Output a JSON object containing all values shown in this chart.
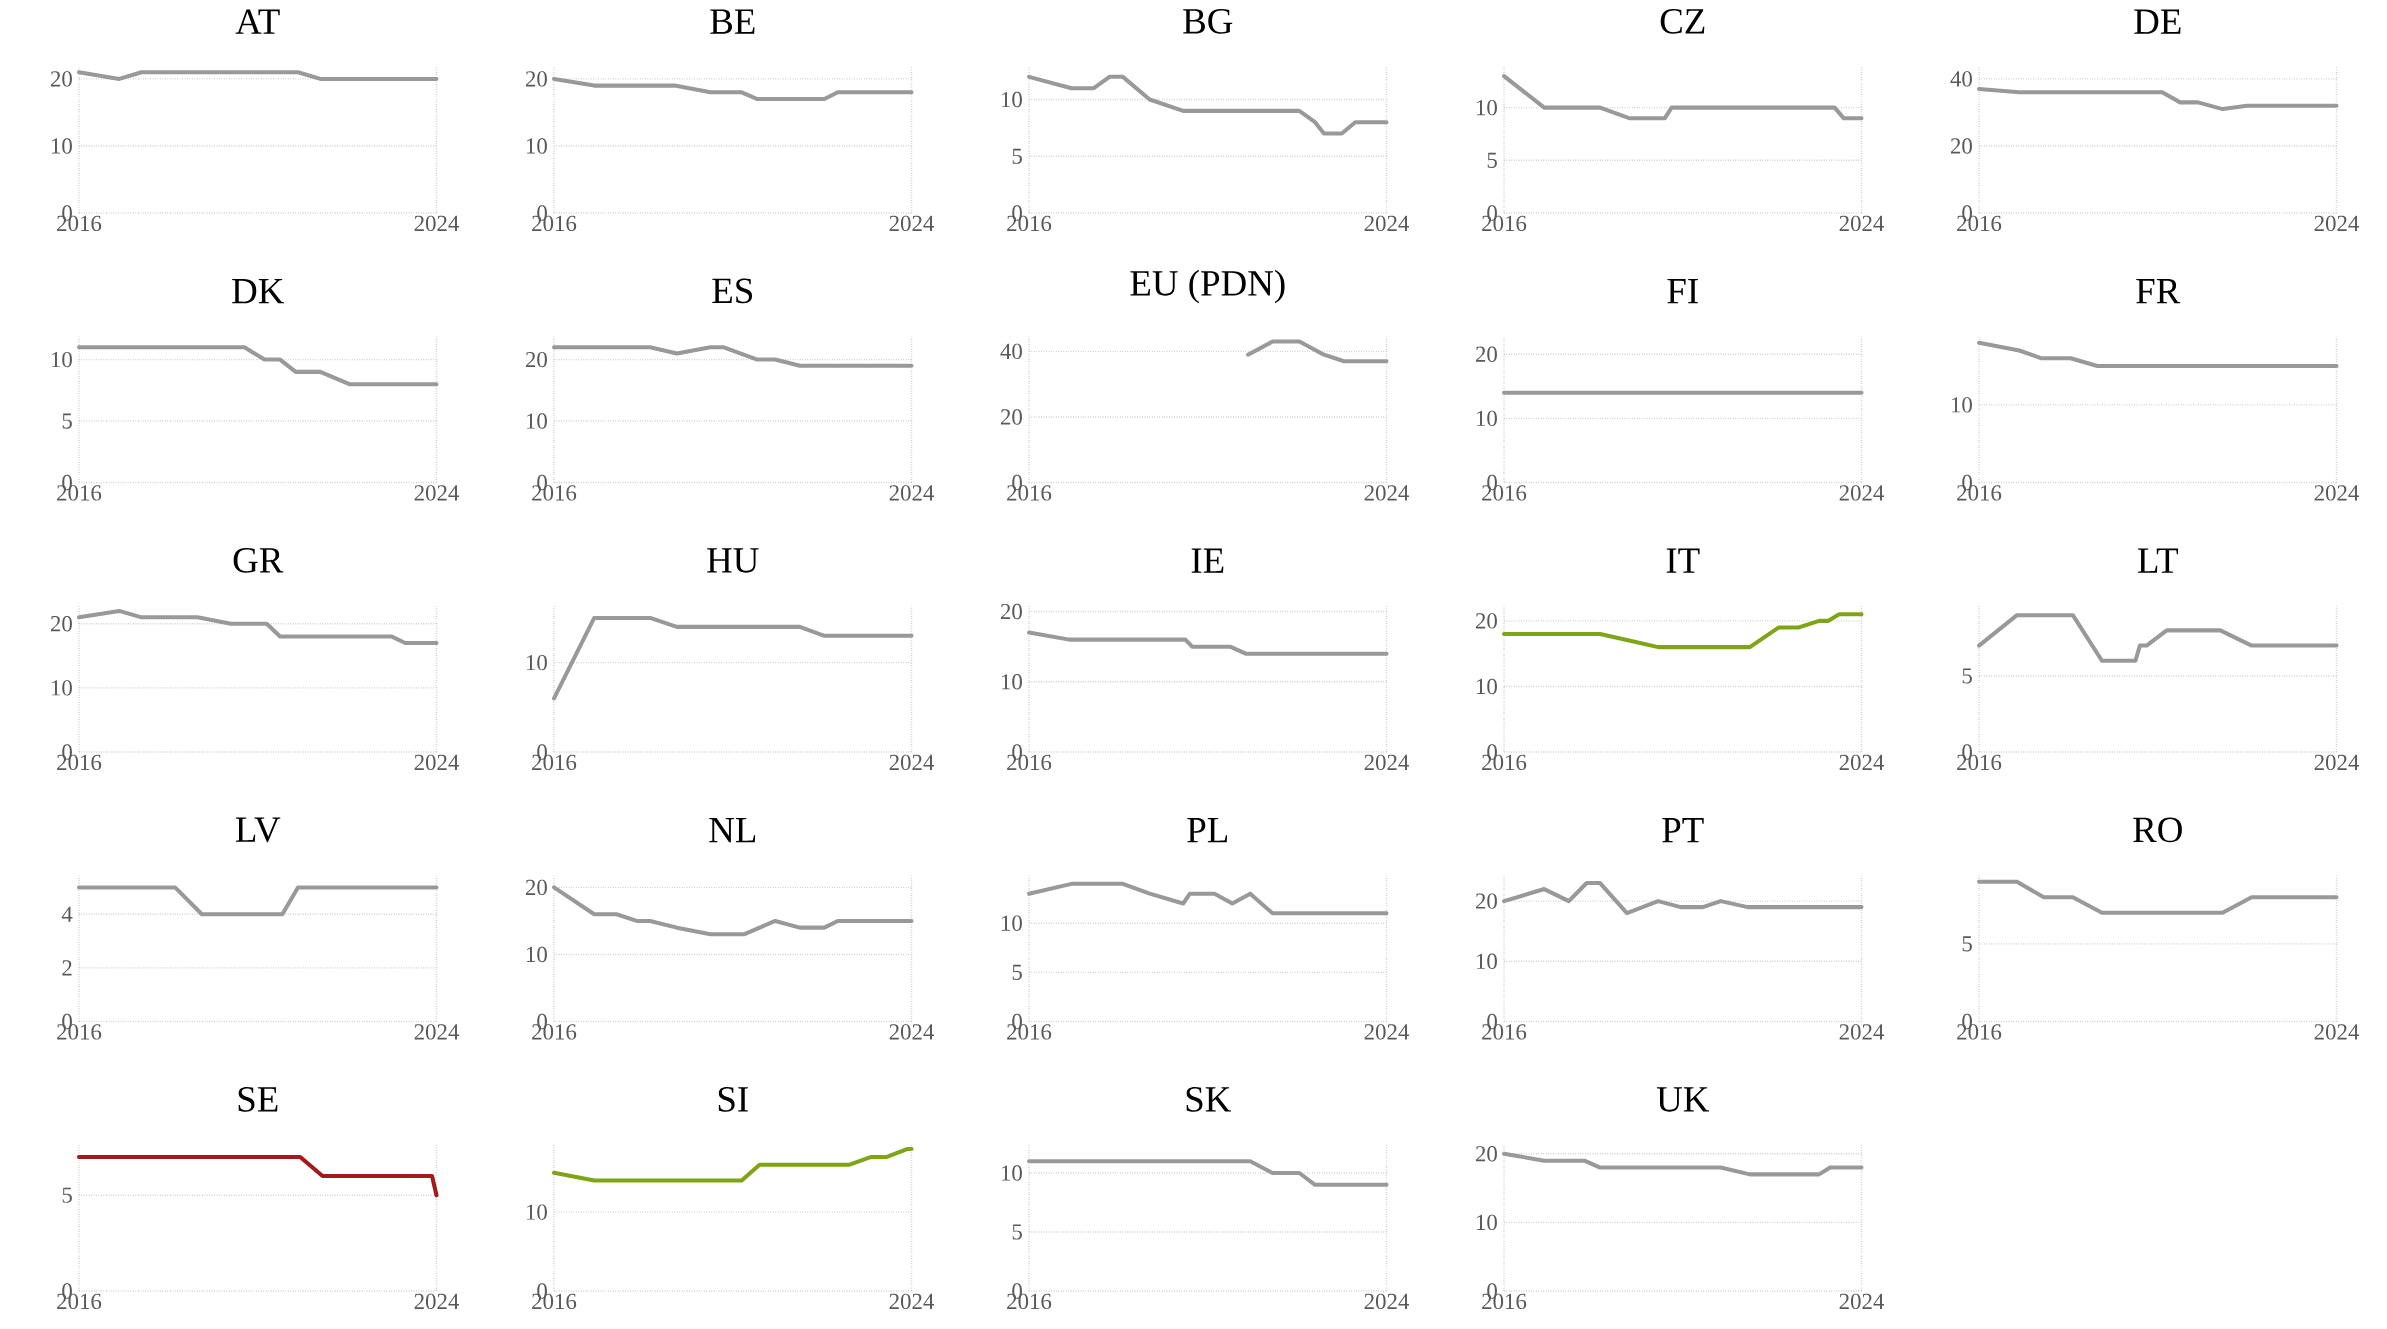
{
  "chart_data": [
    {
      "type": "line",
      "title": "AT",
      "color": "#999999",
      "x": [
        2016,
        2016.9,
        2017.4,
        2020.9,
        2021.4,
        2024
      ],
      "values": [
        21,
        20,
        21,
        21,
        20,
        20
      ],
      "xlim": [
        2016,
        2024
      ],
      "xticks": [
        2016,
        2024
      ],
      "ylim": [
        0,
        22
      ],
      "yticks": [
        0,
        10,
        20
      ],
      "grid": true
    },
    {
      "type": "line",
      "title": "BE",
      "color": "#999999",
      "x": [
        2016,
        2016.9,
        2018.7,
        2019.5,
        2020.2,
        2020.55,
        2022.05,
        2022.35,
        2024
      ],
      "values": [
        20,
        19,
        19,
        18,
        18,
        17,
        17,
        18,
        18
      ],
      "xlim": [
        2016,
        2024
      ],
      "xticks": [
        2016,
        2024
      ],
      "ylim": [
        0,
        22
      ],
      "yticks": [
        0,
        10,
        20
      ],
      "grid": true
    },
    {
      "type": "line",
      "title": "BG",
      "color": "#999999",
      "x": [
        2016,
        2016.95,
        2017.45,
        2017.8,
        2018.1,
        2018.7,
        2019.45,
        2022.05,
        2022.4,
        2022.6,
        2023.0,
        2023.3,
        2024
      ],
      "values": [
        12,
        11,
        11,
        12,
        12,
        10,
        9,
        9,
        8,
        7,
        7,
        8,
        8
      ],
      "xlim": [
        2016,
        2024
      ],
      "xticks": [
        2016,
        2024
      ],
      "ylim": [
        0,
        13
      ],
      "yticks": [
        0,
        5,
        10
      ],
      "grid": true
    },
    {
      "type": "line",
      "title": "CZ",
      "color": "#999999",
      "x": [
        2016,
        2016.9,
        2018.15,
        2018.8,
        2019.6,
        2019.75,
        2023.4,
        2023.6,
        2024
      ],
      "values": [
        13,
        10,
        10,
        9,
        9,
        10,
        10,
        9,
        9
      ],
      "xlim": [
        2016,
        2024
      ],
      "xticks": [
        2016,
        2024
      ],
      "ylim": [
        0,
        14
      ],
      "yticks": [
        0,
        5,
        10
      ],
      "grid": true
    },
    {
      "type": "line",
      "title": "DE",
      "color": "#999999",
      "x": [
        2016,
        2016.9,
        2020.1,
        2020.5,
        2020.9,
        2021.45,
        2022.0,
        2024
      ],
      "values": [
        37,
        36,
        36,
        33,
        33,
        31,
        32,
        32
      ],
      "xlim": [
        2016,
        2024
      ],
      "xticks": [
        2016,
        2024
      ],
      "ylim": [
        0,
        44
      ],
      "yticks": [
        0,
        20,
        40
      ],
      "grid": true
    },
    {
      "type": "line",
      "title": "DK",
      "color": "#999999",
      "x": [
        2016,
        2019.7,
        2020.15,
        2020.5,
        2020.85,
        2021.4,
        2022.05,
        2024
      ],
      "values": [
        11,
        11,
        10,
        10,
        9,
        9,
        8,
        8
      ],
      "xlim": [
        2016,
        2024
      ],
      "xticks": [
        2016,
        2024
      ],
      "ylim": [
        0,
        12
      ],
      "yticks": [
        0,
        5,
        10
      ],
      "grid": true
    },
    {
      "type": "line",
      "title": "ES",
      "color": "#999999",
      "x": [
        2016,
        2018.15,
        2018.75,
        2019.5,
        2019.8,
        2020.55,
        2020.95,
        2021.5,
        2024
      ],
      "values": [
        22,
        22,
        21,
        22,
        22,
        20,
        20,
        19,
        19
      ],
      "xlim": [
        2016,
        2024
      ],
      "xticks": [
        2016,
        2024
      ],
      "ylim": [
        0,
        24
      ],
      "yticks": [
        0,
        10,
        20
      ],
      "grid": true
    },
    {
      "type": "line",
      "title": "EU (PDN)",
      "color": "#999999",
      "x": [
        2020.9,
        2021.45,
        2022.05,
        2022.6,
        2023.05,
        2024
      ],
      "values": [
        39,
        43,
        43,
        39,
        37,
        37
      ],
      "xlim": [
        2016,
        2024
      ],
      "xticks": [
        2016,
        2024
      ],
      "ylim": [
        0,
        45
      ],
      "yticks": [
        0,
        20,
        40
      ],
      "grid": true
    },
    {
      "type": "line",
      "title": "FI",
      "color": "#999999",
      "x": [
        2016,
        2024
      ],
      "values": [
        14,
        14
      ],
      "xlim": [
        2016,
        2024
      ],
      "xticks": [
        2016,
        2024
      ],
      "ylim": [
        0,
        23
      ],
      "yticks": [
        0,
        10,
        20
      ],
      "grid": true
    },
    {
      "type": "line",
      "title": "FR",
      "color": "#999999",
      "x": [
        2016,
        2016.9,
        2017.4,
        2018.05,
        2018.65,
        2024
      ],
      "values": [
        18,
        17,
        16,
        16,
        15,
        15
      ],
      "xlim": [
        2016,
        2024
      ],
      "xticks": [
        2016,
        2024
      ],
      "ylim": [
        0,
        19
      ],
      "yticks": [
        0,
        10
      ],
      "grid": true
    },
    {
      "type": "line",
      "title": "GR",
      "color": "#999999",
      "x": [
        2016,
        2016.9,
        2017.4,
        2018.65,
        2019.4,
        2020.2,
        2020.5,
        2023.0,
        2023.3,
        2024
      ],
      "values": [
        21,
        22,
        21,
        21,
        20,
        20,
        18,
        18,
        17,
        17
      ],
      "xlim": [
        2016,
        2024
      ],
      "xticks": [
        2016,
        2024
      ],
      "ylim": [
        0,
        23
      ],
      "yticks": [
        0,
        10,
        20
      ],
      "grid": true
    },
    {
      "type": "line",
      "title": "HU",
      "color": "#999999",
      "x": [
        2016,
        2016.9,
        2018.15,
        2018.75,
        2021.5,
        2022.05,
        2024
      ],
      "values": [
        6,
        15,
        15,
        14,
        14,
        13,
        13
      ],
      "xlim": [
        2016,
        2024
      ],
      "xticks": [
        2016,
        2024
      ],
      "ylim": [
        0,
        16.5
      ],
      "yticks": [
        0,
        10
      ],
      "grid": true
    },
    {
      "type": "line",
      "title": "IE",
      "color": "#999999",
      "x": [
        2016,
        2016.9,
        2019.5,
        2019.65,
        2020.5,
        2020.85,
        2024
      ],
      "values": [
        17,
        16,
        16,
        15,
        15,
        14,
        14
      ],
      "xlim": [
        2016,
        2024
      ],
      "xticks": [
        2016,
        2024
      ],
      "ylim": [
        0,
        21
      ],
      "yticks": [
        0,
        10,
        20
      ],
      "grid": true
    },
    {
      "type": "line",
      "title": "IT",
      "color": "#7fa516",
      "x": [
        2016,
        2018.15,
        2018.8,
        2019.45,
        2021.5,
        2022.15,
        2022.6,
        2023.05,
        2023.25,
        2023.5,
        2024
      ],
      "values": [
        18,
        18,
        17,
        16,
        16,
        19,
        19,
        20,
        20,
        21,
        21
      ],
      "xlim": [
        2016,
        2024
      ],
      "xticks": [
        2016,
        2024
      ],
      "ylim": [
        0,
        22.5
      ],
      "yticks": [
        0,
        10,
        20
      ],
      "grid": true
    },
    {
      "type": "line",
      "title": "LT",
      "color": "#999999",
      "x": [
        2016,
        2016.85,
        2018.1,
        2018.75,
        2019.5,
        2019.6,
        2019.75,
        2020.2,
        2021.4,
        2022.1,
        2024
      ],
      "values": [
        7,
        9,
        9,
        6,
        6,
        7,
        7,
        8,
        8,
        7,
        7
      ],
      "xlim": [
        2016,
        2024
      ],
      "xticks": [
        2016,
        2024
      ],
      "ylim": [
        0,
        9.7
      ],
      "yticks": [
        0,
        5
      ],
      "grid": true
    },
    {
      "type": "line",
      "title": "LV",
      "color": "#999999",
      "x": [
        2016,
        2018.15,
        2018.75,
        2020.55,
        2020.9,
        2024
      ],
      "values": [
        5,
        5,
        4,
        4,
        5,
        5
      ],
      "xlim": [
        2016,
        2024
      ],
      "xticks": [
        2016,
        2024
      ],
      "ylim": [
        0,
        5.5
      ],
      "yticks": [
        0,
        2,
        4
      ],
      "grid": true
    },
    {
      "type": "line",
      "title": "NL",
      "color": "#999999",
      "x": [
        2016,
        2016.9,
        2017.4,
        2017.85,
        2018.15,
        2018.75,
        2019.5,
        2020.25,
        2020.95,
        2021.5,
        2022.05,
        2022.35,
        2024
      ],
      "values": [
        20,
        16,
        16,
        15,
        15,
        14,
        13,
        13,
        15,
        14,
        14,
        15,
        15
      ],
      "xlim": [
        2016,
        2024
      ],
      "xticks": [
        2016,
        2024
      ],
      "ylim": [
        0,
        22
      ],
      "yticks": [
        0,
        10,
        20
      ],
      "grid": true
    },
    {
      "type": "line",
      "title": "PL",
      "color": "#999999",
      "x": [
        2016,
        2016.95,
        2018.1,
        2018.7,
        2019.45,
        2019.6,
        2020.15,
        2020.55,
        2020.95,
        2021.45,
        2024
      ],
      "values": [
        13,
        14,
        14,
        13,
        12,
        13,
        13,
        12,
        13,
        11,
        11
      ],
      "xlim": [
        2016,
        2024
      ],
      "xticks": [
        2016,
        2024
      ],
      "ylim": [
        0,
        15
      ],
      "yticks": [
        0,
        5,
        10
      ],
      "grid": true
    },
    {
      "type": "line",
      "title": "PT",
      "color": "#999999",
      "x": [
        2016,
        2016.9,
        2017.45,
        2017.85,
        2018.15,
        2018.75,
        2019.45,
        2019.95,
        2020.45,
        2020.85,
        2021.45,
        2024
      ],
      "values": [
        20,
        22,
        20,
        23,
        23,
        18,
        20,
        19,
        19,
        20,
        19,
        19
      ],
      "xlim": [
        2016,
        2024
      ],
      "xticks": [
        2016,
        2024
      ],
      "ylim": [
        0,
        24.5
      ],
      "yticks": [
        0,
        10,
        20
      ],
      "grid": true
    },
    {
      "type": "line",
      "title": "RO",
      "color": "#999999",
      "x": [
        2016,
        2016.85,
        2017.45,
        2018.1,
        2018.75,
        2021.45,
        2022.1,
        2024
      ],
      "values": [
        9,
        9,
        8,
        8,
        7,
        7,
        8,
        8
      ],
      "xlim": [
        2016,
        2024
      ],
      "xticks": [
        2016,
        2024
      ],
      "ylim": [
        0,
        9.5
      ],
      "yticks": [
        0,
        5
      ],
      "grid": true
    },
    {
      "type": "line",
      "title": "SE",
      "color": "#a31a1a",
      "x": [
        2016,
        2020.95,
        2021.45,
        2023.9,
        2024
      ],
      "values": [
        7,
        7,
        6,
        6,
        5
      ],
      "xlim": [
        2016,
        2024
      ],
      "xticks": [
        2016,
        2024
      ],
      "ylim": [
        0,
        7.7
      ],
      "yticks": [
        0,
        5
      ],
      "grid": true
    },
    {
      "type": "line",
      "title": "SI",
      "color": "#7fa516",
      "x": [
        2016,
        2016.9,
        2020.2,
        2020.6,
        2022.6,
        2023.1,
        2023.45,
        2023.9,
        2024
      ],
      "values": [
        15,
        14,
        14,
        16,
        16,
        17,
        17,
        18,
        18
      ],
      "xlim": [
        2016,
        2024
      ],
      "xticks": [
        2016,
        2024
      ],
      "ylim": [
        0,
        18.7
      ],
      "yticks": [
        0,
        10
      ],
      "grid": true
    },
    {
      "type": "line",
      "title": "SK",
      "color": "#999999",
      "x": [
        2016,
        2020.95,
        2021.45,
        2022.05,
        2022.4,
        2024
      ],
      "values": [
        11,
        11,
        10,
        10,
        9,
        9
      ],
      "xlim": [
        2016,
        2024
      ],
      "xticks": [
        2016,
        2024
      ],
      "ylim": [
        0,
        12.5
      ],
      "yticks": [
        0,
        5,
        10
      ],
      "grid": true
    },
    {
      "type": "line",
      "title": "UK",
      "color": "#999999",
      "x": [
        2016,
        2016.9,
        2017.8,
        2018.15,
        2020.85,
        2021.5,
        2023.05,
        2023.3,
        2024
      ],
      "values": [
        20,
        19,
        19,
        18,
        18,
        17,
        17,
        18,
        18
      ],
      "xlim": [
        2016,
        2024
      ],
      "xticks": [
        2016,
        2024
      ],
      "ylim": [
        0,
        21.5
      ],
      "yticks": [
        0,
        10,
        20
      ],
      "grid": true
    }
  ]
}
